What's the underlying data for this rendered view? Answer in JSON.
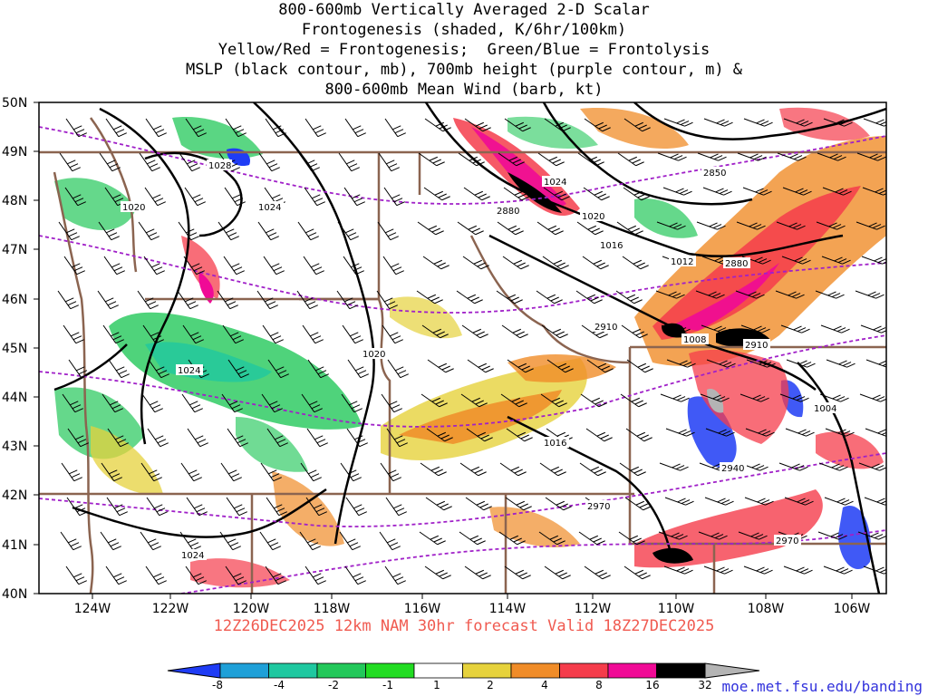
{
  "title_lines": [
    "800-600mb Vertically Averaged 2-D Scalar",
    "Frontogenesis (shaded, K/6hr/100km)",
    "Yellow/Red = Frontogenesis;  Green/Blue = Frontolysis",
    "MSLP (black contour, mb), 700mb height (purple contour, m) &",
    "800-600mb Mean Wind (barb, kt)"
  ],
  "lat_labels": [
    "50N",
    "49N",
    "48N",
    "47N",
    "46N",
    "45N",
    "44N",
    "43N",
    "42N",
    "41N",
    "40N"
  ],
  "lon_labels": [
    "124W",
    "122W",
    "120W",
    "118W",
    "116W",
    "114W",
    "112W",
    "110W",
    "108W",
    "106W"
  ],
  "mslp_labels": [
    "1028",
    "1024",
    "1020",
    "1016",
    "1012",
    "1008",
    "1004",
    "1020",
    "1024",
    "1024",
    "1016",
    "1024",
    "1020"
  ],
  "height_labels": [
    "2850",
    "2880",
    "2880",
    "2910",
    "2910",
    "2940",
    "2970",
    "2970"
  ],
  "valid_line": "12Z26DEC2025 12km NAM 30hr forecast Valid 18Z27DEC2025",
  "colorbar": {
    "ticks": [
      "-8",
      "-4",
      "-2",
      "-1",
      "1",
      "2",
      "4",
      "8",
      "16",
      "32"
    ],
    "colors": [
      "#1f3cf5",
      "#1fa0d8",
      "#1fc8a0",
      "#23c85a",
      "#22dc22",
      "#ffffff",
      "#e6d23c",
      "#f08c28",
      "#f53c4b",
      "#f00a96",
      "#000000",
      "#b4b4b4"
    ]
  },
  "colors": {
    "mslp": "#000000",
    "height": "#a020c8",
    "borders": "#8b6450",
    "valid_text": "#f05a50",
    "credit_text": "#3232dc"
  },
  "credit": "moe.met.fsu.edu/banding"
}
